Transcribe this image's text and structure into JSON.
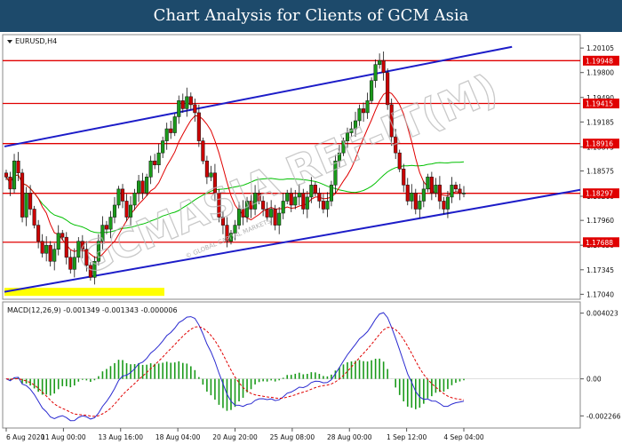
{
  "banner": {
    "title": "Chart Analysis for Clients of GCM Asia"
  },
  "symbol_label": "EURUSD,H4",
  "watermark": {
    "text": "GCMASIA REF-IT(M)",
    "subtext": "© GLOBAL CAPITAL MARKETS"
  },
  "chart_data": [
    {
      "type": "candlestick",
      "symbol": "EURUSD",
      "timeframe": "H4",
      "ylim": [
        1.17,
        1.2025
      ],
      "ytick_labels": [
        "1.20105",
        "1.19800",
        "1.19490",
        "1.19185",
        "1.18875",
        "1.18575",
        "1.18260",
        "1.17960",
        "1.17650",
        "1.17345",
        "1.17040"
      ],
      "xtick_labels": [
        "6 Aug 2020",
        "11 Aug 00:00",
        "13 Aug 16:00",
        "18 Aug 04:00",
        "20 Aug 20:00",
        "25 Aug 08:00",
        "28 Aug 00:00",
        "1 Sep 12:00",
        "4 Sep 04:00"
      ],
      "horizontal_levels": [
        {
          "value": 1.19948,
          "label": "1.19948",
          "color": "#e00000"
        },
        {
          "value": 1.19415,
          "label": "1.19415",
          "color": "#e00000"
        },
        {
          "value": 1.18916,
          "label": "1.18916",
          "color": "#e00000"
        },
        {
          "value": 1.18297,
          "label": "1.18297",
          "color": "#e00000"
        },
        {
          "value": 1.17688,
          "label": "1.17688",
          "color": "#e00000"
        }
      ],
      "trendlines": [
        {
          "color": "#1c1cc8",
          "points": [
            [
              0,
              1.1888
            ],
            [
              126,
              1.2012
            ]
          ]
        },
        {
          "color": "#1c1cc8",
          "points": [
            [
              0,
              1.1707
            ],
            [
              143,
              1.1834
            ]
          ]
        }
      ],
      "support_zone": {
        "from": 1.1702,
        "to": 1.1712,
        "color": "#ffff00"
      },
      "candle_colors": {
        "up": "#1a9a1a",
        "down": "#cc0000"
      },
      "ma_colors": {
        "fast": "#e00000",
        "slow": "#00c000"
      },
      "close_series": [
        1.185,
        1.1835,
        1.187,
        1.1855,
        1.18,
        1.183,
        1.181,
        1.179,
        1.177,
        1.1755,
        1.1765,
        1.1745,
        1.176,
        1.178,
        1.1775,
        1.175,
        1.1735,
        1.175,
        1.177,
        1.176,
        1.174,
        1.1725,
        1.1745,
        1.177,
        1.179,
        1.1785,
        1.18,
        1.1815,
        1.1835,
        1.182,
        1.18,
        1.1815,
        1.183,
        1.1845,
        1.183,
        1.185,
        1.187,
        1.1865,
        1.188,
        1.1895,
        1.191,
        1.1905,
        1.1925,
        1.1945,
        1.1935,
        1.195,
        1.194,
        1.193,
        1.1895,
        1.187,
        1.185,
        1.1855,
        1.183,
        1.18,
        1.179,
        1.177,
        1.178,
        1.179,
        1.181,
        1.18,
        1.182,
        1.181,
        1.183,
        1.182,
        1.181,
        1.18,
        1.181,
        1.179,
        1.1805,
        1.182,
        1.183,
        1.1815,
        1.1825,
        1.183,
        1.181,
        1.1825,
        1.184,
        1.183,
        1.182,
        1.181,
        1.182,
        1.184,
        1.187,
        1.188,
        1.1895,
        1.1905,
        1.191,
        1.192,
        1.1935,
        1.193,
        1.1945,
        1.197,
        1.199,
        1.1995,
        1.198,
        1.194,
        1.19,
        1.188,
        1.186,
        1.184,
        1.182,
        1.183,
        1.181,
        1.182,
        1.1835,
        1.185,
        1.183,
        1.184,
        1.182,
        1.181,
        1.1825,
        1.184,
        1.1835,
        1.183,
        1.183
      ],
      "candles_rendered": 115
    },
    {
      "type": "macd",
      "label": "MACD(12,26,9) -0.001349 -0.001343 -0.000006",
      "params": [
        12,
        26,
        9
      ],
      "values": {
        "macd": -0.001349,
        "signal": -0.001343,
        "histogram": -6e-06
      },
      "ytick_labels": [
        "0.004023",
        "0.00",
        "-0.002266"
      ],
      "ylim": [
        -0.0029,
        0.0046
      ],
      "colors": {
        "macd": "#2a2ad0",
        "signal": "#e00000",
        "histogram": "#1a9a1a"
      }
    }
  ]
}
